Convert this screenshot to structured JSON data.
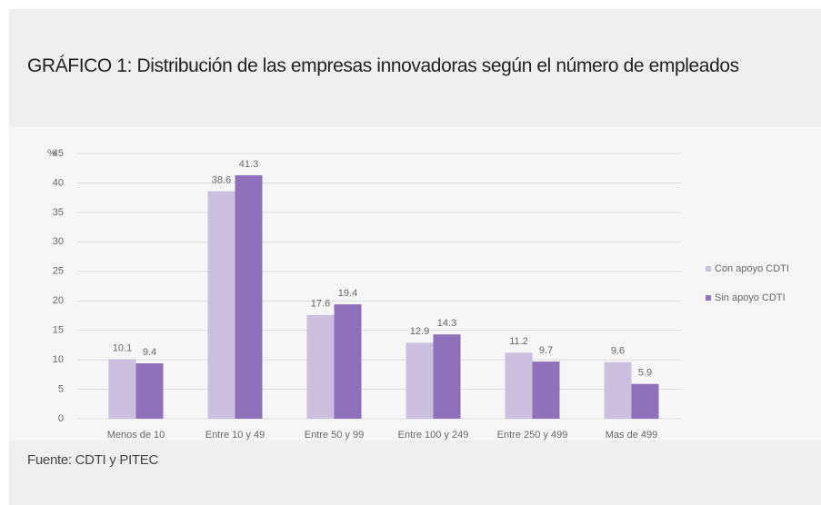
{
  "chart_data": {
    "type": "bar",
    "title": "GRÁFICO 1: Distribución de las empresas innovadoras según el número de empleados",
    "y_label": "%",
    "source": "Fuente: CDTI y PITEC",
    "categories": [
      "Menos de 10",
      "Entre 10 y 49",
      "Entre 50 y 99",
      "Entre 100 y 249",
      "Entre 250 y 499",
      "Mas de 499"
    ],
    "series": [
      {
        "name": "Con apoyo CDTI",
        "color": "#cbbfe0",
        "values": [
          10.1,
          38.6,
          17.6,
          12.9,
          11.2,
          9.6
        ]
      },
      {
        "name": "Sin apoyo CDTI",
        "color": "#9070bb",
        "values": [
          9.4,
          41.3,
          19.4,
          14.3,
          9.7,
          5.9
        ]
      }
    ],
    "ylim": [
      0,
      45
    ],
    "yticks": [
      0,
      5,
      10,
      15,
      20,
      25,
      30,
      35,
      40,
      45
    ],
    "grid": true,
    "legend": "right"
  }
}
